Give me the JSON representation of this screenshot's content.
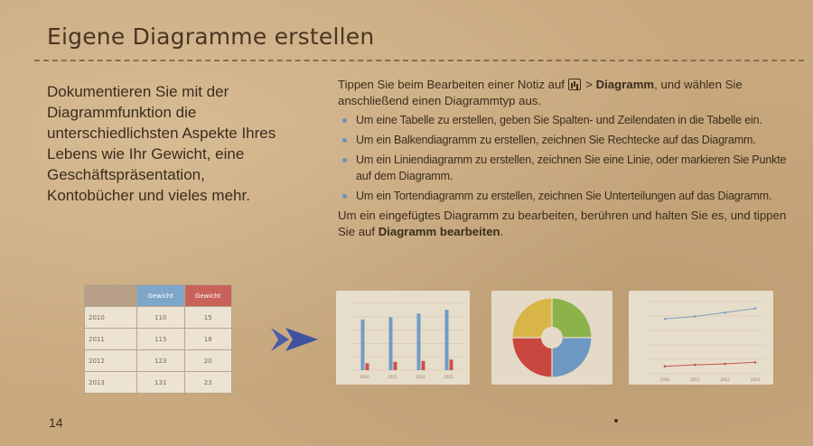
{
  "heading": "Eigene Diagramme erstellen",
  "intro": "Dokumentieren Sie mit der Diagrammfunktion die unterschiedlichsten Aspekte Ihres Lebens wie Ihr Gewicht, eine Geschäftspräsentation, Kontobücher und vieles mehr.",
  "instructions": {
    "lead_before": "Tippen Sie beim Bearbeiten einer Notiz auf",
    "lead_icon": "chart-insert-icon",
    "lead_sep": " > ",
    "lead_bold": "Diagramm",
    "lead_after": ", und wählen Sie anschließend einen Diagrammtyp aus.",
    "bullets": [
      "Um eine Tabelle zu erstellen, geben Sie Spalten- und Zeilendaten in die Tabelle ein.",
      "Um ein Balkendiagramm zu erstellen, zeichnen Sie Rechtecke auf das Diagramm.",
      "Um ein Liniendiagramm zu erstellen, zeichnen Sie eine Linie, oder markieren Sie Punkte auf dem Diagramm.",
      "Um ein Tortendiagramm zu erstellen, zeichnen Sie Unterteilungen auf das Diagramm."
    ],
    "edit_before": "Um ein eingefügtes Diagramm zu bearbeiten, berühren und halten Sie es, und tippen Sie auf ",
    "edit_bold": "Diagramm bearbeiten",
    "edit_after": "."
  },
  "table": {
    "headers": [
      "",
      "Gewicht",
      "Gewicht"
    ],
    "rows": [
      {
        "year": "2010",
        "a": "110",
        "b": "15"
      },
      {
        "year": "2011",
        "a": "115",
        "b": "18"
      },
      {
        "year": "2012",
        "a": "123",
        "b": "20"
      },
      {
        "year": "2013",
        "a": "131",
        "b": "23"
      }
    ]
  },
  "chart_data": [
    {
      "type": "bar",
      "categories": [
        "2010",
        "2011",
        "2012",
        "2013"
      ],
      "series": [
        {
          "values": [
            110,
            115,
            123,
            131
          ]
        },
        {
          "values": [
            15,
            18,
            20,
            23
          ]
        }
      ],
      "ylim": [
        0,
        145
      ],
      "colors": [
        "#6f9cc9",
        "#c9534a"
      ]
    },
    {
      "type": "pie",
      "values": [
        25,
        25,
        25,
        25
      ],
      "colors": [
        "#8bb34a",
        "#6c98c2",
        "#c9473f",
        "#d9b548"
      ]
    },
    {
      "type": "line",
      "x": [
        "2010",
        "2011",
        "2012",
        "2013"
      ],
      "series": [
        {
          "values": [
            110,
            115,
            123,
            131
          ]
        },
        {
          "values": [
            15,
            18,
            20,
            23
          ]
        }
      ],
      "ylim": [
        0,
        145
      ],
      "colors": [
        "#7f9fc2",
        "#c9534a"
      ]
    }
  ],
  "page_number": "14",
  "colors": {
    "accent_blue": "#6f9cc9",
    "accent_red": "#c9534a",
    "bullet": "#6d8fbf"
  }
}
